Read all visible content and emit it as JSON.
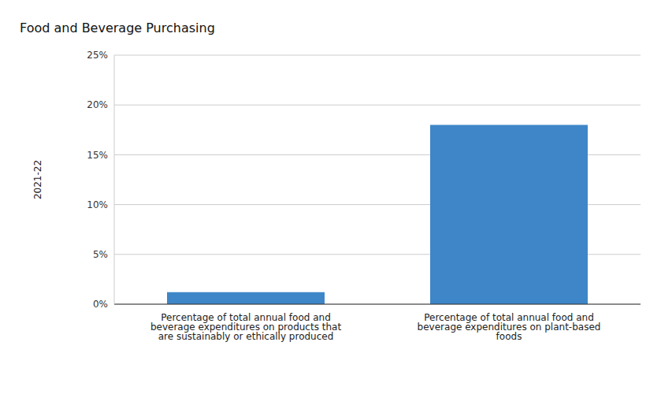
{
  "chart_data": {
    "type": "bar",
    "title": "Food and Beverage Purchasing",
    "ylabel": "2021-22",
    "categories": [
      "Percentage of total annual food and beverage expenditures on products that are sustainably or ethically produced",
      "Percentage of total annual food and beverage expenditures on plant-based foods"
    ],
    "values": [
      1.2,
      18
    ],
    "color": "#3f86c8",
    "ylim": [
      0,
      25
    ],
    "yticks": [
      {
        "value": 0,
        "label": "0%"
      },
      {
        "value": 5,
        "label": "5%"
      },
      {
        "value": 10,
        "label": "10%"
      },
      {
        "value": 15,
        "label": "15%"
      },
      {
        "value": 20,
        "label": "20%"
      },
      {
        "value": 25,
        "label": "25%"
      }
    ],
    "grid": true
  }
}
